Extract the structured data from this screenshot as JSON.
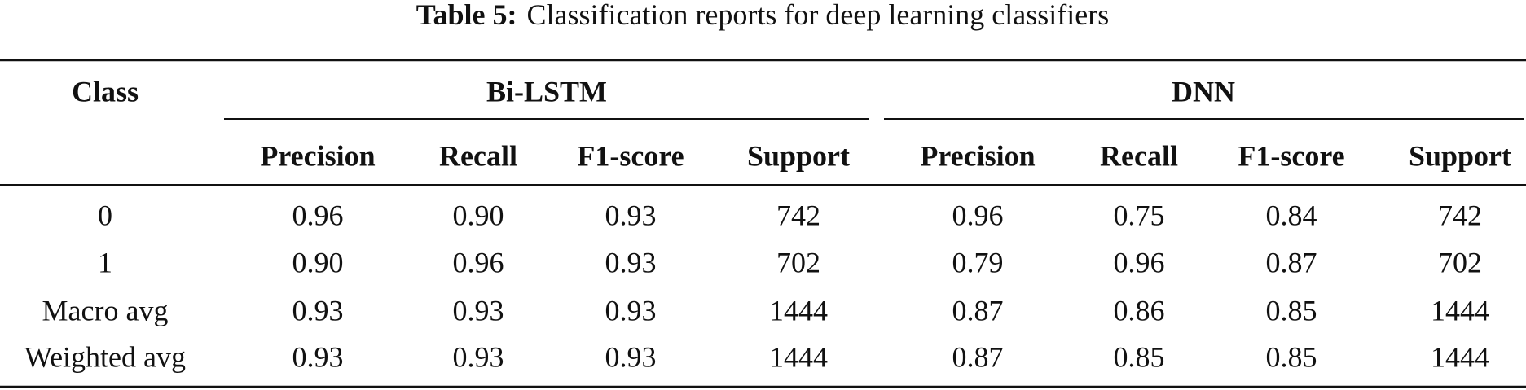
{
  "caption": {
    "label": "Table 5:",
    "text": "Classification reports for deep learning classifiers"
  },
  "table": {
    "class_header": "Class",
    "groups": [
      "Bi-LSTM",
      "DNN"
    ],
    "columns": [
      "Precision",
      "Recall",
      "F1-score",
      "Support",
      "Precision",
      "Recall",
      "F1-score",
      "Support"
    ],
    "rows": [
      [
        "0",
        "0.96",
        "0.90",
        "0.93",
        "742",
        "0.96",
        "0.75",
        "0.84",
        "742"
      ],
      [
        "1",
        "0.90",
        "0.96",
        "0.93",
        "702",
        "0.79",
        "0.96",
        "0.87",
        "702"
      ],
      [
        "Macro avg",
        "0.93",
        "0.93",
        "0.93",
        "1444",
        "0.87",
        "0.86",
        "0.85",
        "1444"
      ],
      [
        "Weighted avg",
        "0.93",
        "0.93",
        "0.93",
        "1444",
        "0.87",
        "0.85",
        "0.85",
        "1444"
      ]
    ]
  }
}
